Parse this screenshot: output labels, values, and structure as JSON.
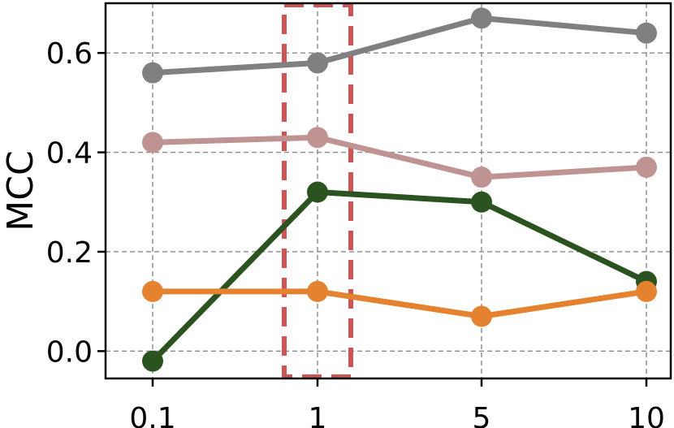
{
  "chart_data": {
    "type": "line",
    "title": "",
    "xlabel": "",
    "ylabel": "MCC",
    "x": [
      "0.1",
      "1",
      "5",
      "10"
    ],
    "y_ticks": [
      "0.0",
      "0.2",
      "0.4",
      "0.6"
    ],
    "ylim": [
      -0.055,
      0.7
    ],
    "grid": true,
    "legend": "none",
    "series": [
      {
        "color": "#808080",
        "values": [
          0.56,
          0.58,
          0.67,
          0.64
        ]
      },
      {
        "color": "#c09393",
        "values": [
          0.42,
          0.43,
          0.35,
          0.37
        ]
      },
      {
        "color": "#2b5320",
        "values": [
          -0.02,
          0.32,
          0.3,
          0.14
        ]
      },
      {
        "color": "#e4822f",
        "values": [
          0.12,
          0.12,
          0.07,
          0.12
        ]
      }
    ],
    "highlight": {
      "x": "1",
      "color": "#cd5555",
      "style": "dashed"
    }
  }
}
